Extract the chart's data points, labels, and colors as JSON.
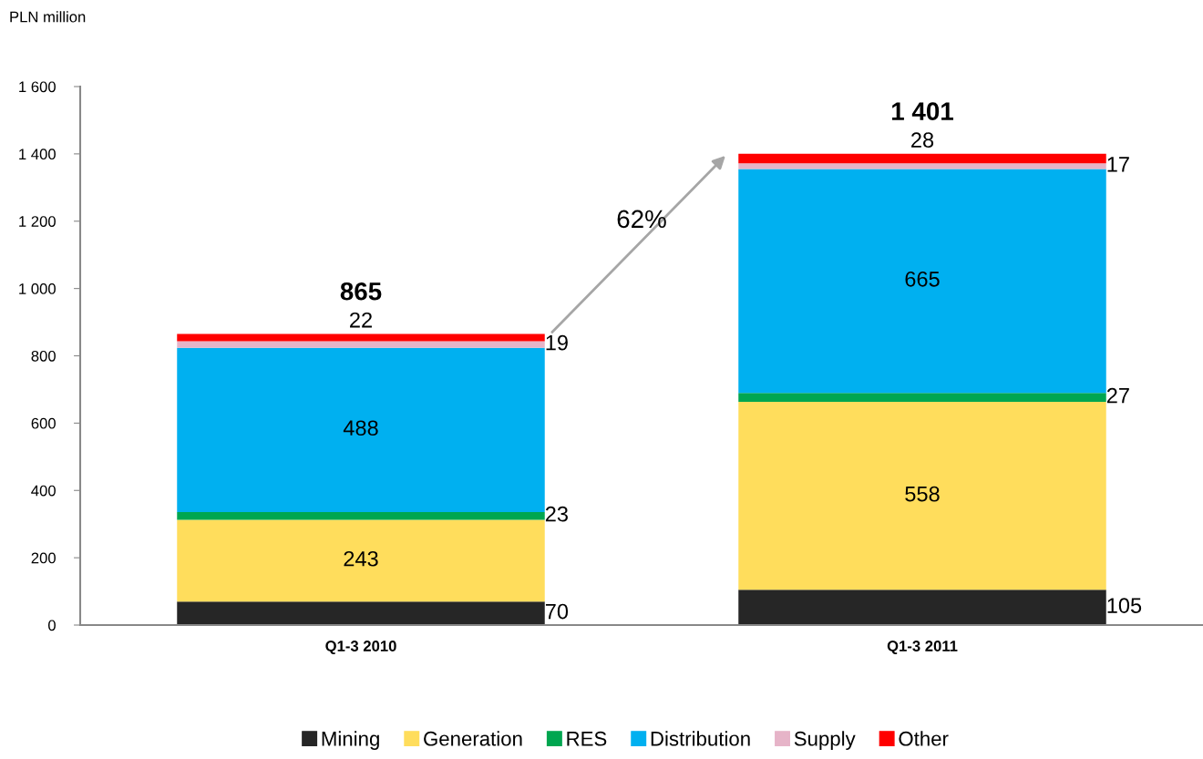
{
  "chart_data": {
    "type": "bar",
    "stacked": true,
    "ylabel": "PLN million",
    "categories": [
      "Q1-3 2010",
      "Q1-3 2011"
    ],
    "series": [
      {
        "name": "Mining",
        "color": "#262626",
        "values": [
          70,
          105
        ]
      },
      {
        "name": "Generation",
        "color": "#ffdd5c",
        "values": [
          243,
          558
        ]
      },
      {
        "name": "RES",
        "color": "#00a650",
        "values": [
          23,
          27
        ]
      },
      {
        "name": "Distribution",
        "color": "#00b0f0",
        "values": [
          488,
          665
        ]
      },
      {
        "name": "Supply",
        "color": "#e6b4c8",
        "values": [
          19,
          17
        ]
      },
      {
        "name": "Other",
        "color": "#ff0000",
        "values": [
          22,
          28
        ]
      }
    ],
    "totals": [
      "865",
      "1 401"
    ],
    "data_labels": true,
    "annotations": [
      "62%"
    ],
    "ylim": [
      0,
      1600
    ],
    "yticks": [
      0,
      200,
      400,
      600,
      800,
      {
        "value": 1000,
        "label": "1 000"
      },
      {
        "value": 1200,
        "label": "1 200"
      },
      {
        "value": 1400,
        "label": "1 400"
      },
      {
        "value": 1600,
        "label": "1 600"
      }
    ],
    "grid": false,
    "legend": "bottom"
  }
}
